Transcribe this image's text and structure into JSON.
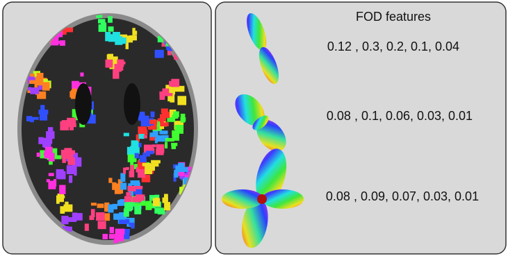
{
  "title": "FOD features",
  "rows": [
    "0.12 , 0.3, 0.2, 0.1, 0.04",
    "0.08 , 0.1, 0.06, 0.03, 0.01",
    "0.08 , 0.09, 0.07, 0.03, 0.01"
  ]
}
